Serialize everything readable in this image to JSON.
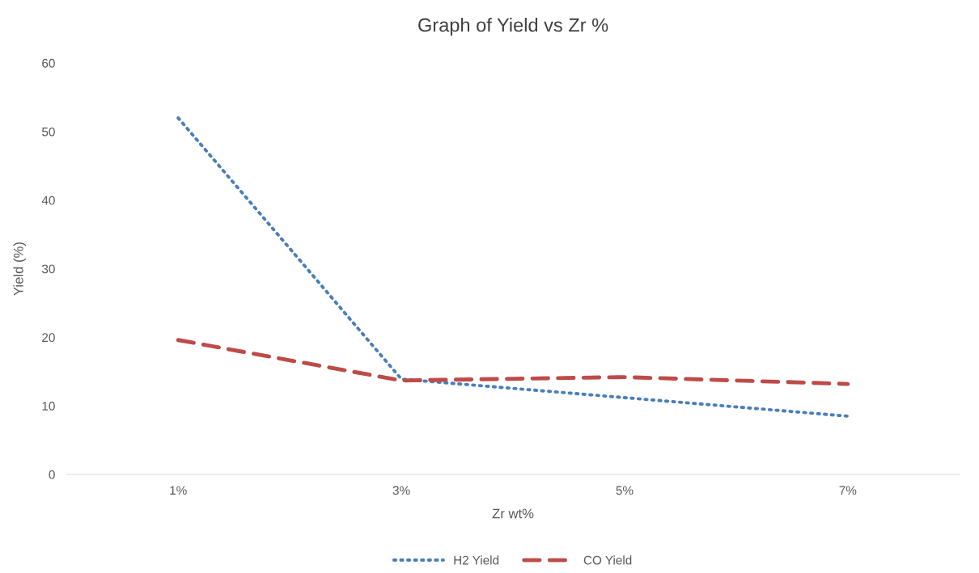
{
  "chart_data": {
    "type": "line",
    "title": "Graph of Yield vs Zr %",
    "xlabel": "Zr wt%",
    "ylabel": "Yield (%)",
    "categories": [
      "1%",
      "3%",
      "5%",
      "7%"
    ],
    "series": [
      {
        "name": "H2 Yield",
        "color": "#4a7ebb",
        "line_style": "dotted",
        "values": [
          52,
          13.9,
          11.2,
          8.5
        ]
      },
      {
        "name": "CO Yield",
        "color": "#be4b48",
        "line_style": "dashed",
        "values": [
          19.6,
          13.7,
          14.2,
          13.2
        ]
      }
    ],
    "ylim": [
      0,
      60
    ],
    "yticks": [
      0,
      10,
      20,
      30,
      40,
      50,
      60
    ],
    "grid": false,
    "legend": "bottom",
    "marker": "none"
  }
}
